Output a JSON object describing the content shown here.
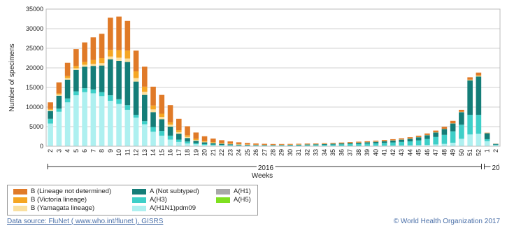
{
  "chart_data": {
    "type": "bar",
    "stacked": true,
    "ylabel": "Number of specimens",
    "xlabel": "Weeks",
    "ylim": [
      0,
      35000
    ],
    "yticks": [
      0,
      5000,
      10000,
      15000,
      20000,
      25000,
      30000,
      35000
    ],
    "year_labels": [
      "2016",
      "20"
    ],
    "categories": [
      "2",
      "3",
      "4",
      "5",
      "6",
      "7",
      "8",
      "9",
      "10",
      "11",
      "12",
      "13",
      "14",
      "15",
      "16",
      "17",
      "18",
      "19",
      "20",
      "21",
      "22",
      "23",
      "24",
      "25",
      "26",
      "27",
      "28",
      "29",
      "30",
      "31",
      "32",
      "33",
      "34",
      "35",
      "36",
      "37",
      "38",
      "39",
      "40",
      "41",
      "42",
      "43",
      "44",
      "45",
      "46",
      "47",
      "48",
      "49",
      "50",
      "51",
      "52",
      "1",
      "2"
    ],
    "series": [
      {
        "name": "A(H1N1)pdm09",
        "color": "#aef0f0",
        "values": [
          5800,
          8800,
          11200,
          13000,
          13800,
          13500,
          12800,
          11600,
          10800,
          9300,
          7300,
          5600,
          3700,
          2700,
          1700,
          1100,
          700,
          500,
          350,
          260,
          200,
          160,
          130,
          110,
          90,
          80,
          70,
          70,
          70,
          70,
          70,
          70,
          70,
          70,
          80,
          90,
          100,
          110,
          130,
          150,
          170,
          200,
          240,
          290,
          360,
          460,
          600,
          900,
          1900,
          3000,
          3200,
          1300,
          250
        ]
      },
      {
        "name": "A(H3)",
        "color": "#3ecfc8",
        "values": [
          1200,
          800,
          1000,
          1000,
          1000,
          1000,
          1000,
          1400,
          1200,
          1200,
          700,
          800,
          1200,
          1200,
          1000,
          600,
          500,
          300,
          200,
          180,
          150,
          130,
          110,
          100,
          100,
          110,
          130,
          150,
          170,
          200,
          230,
          260,
          300,
          350,
          400,
          450,
          500,
          560,
          620,
          700,
          800,
          900,
          1000,
          1200,
          1500,
          1900,
          2300,
          2900,
          3600,
          5000,
          4800,
          500,
          150
        ]
      },
      {
        "name": "A(H1)",
        "color": "#a8a8a8",
        "values": [
          0,
          0,
          0,
          0,
          0,
          0,
          0,
          0,
          0,
          0,
          0,
          0,
          0,
          0,
          0,
          0,
          0,
          0,
          0,
          0,
          0,
          0,
          0,
          0,
          0,
          0,
          0,
          0,
          0,
          0,
          0,
          0,
          0,
          0,
          0,
          0,
          0,
          0,
          0,
          0,
          0,
          0,
          0,
          0,
          0,
          0,
          0,
          0,
          0,
          0,
          0,
          0,
          0
        ]
      },
      {
        "name": "A(H5)",
        "color": "#7fe020",
        "values": [
          0,
          0,
          0,
          0,
          0,
          0,
          0,
          0,
          0,
          0,
          0,
          0,
          0,
          0,
          0,
          0,
          0,
          0,
          0,
          0,
          0,
          0,
          0,
          0,
          0,
          0,
          0,
          0,
          0,
          0,
          0,
          0,
          0,
          0,
          0,
          0,
          0,
          0,
          0,
          0,
          0,
          0,
          0,
          0,
          0,
          0,
          0,
          0,
          0,
          0,
          0,
          0,
          0
        ]
      },
      {
        "name": "A (Not subtyped)",
        "color": "#147d78",
        "values": [
          2000,
          3300,
          4800,
          5500,
          5500,
          6000,
          6800,
          9200,
          9800,
          11000,
          8500,
          6700,
          3800,
          3000,
          2300,
          1500,
          900,
          600,
          450,
          350,
          270,
          210,
          170,
          140,
          120,
          110,
          100,
          100,
          110,
          120,
          140,
          160,
          180,
          200,
          230,
          260,
          300,
          340,
          380,
          430,
          500,
          580,
          680,
          800,
          950,
          1150,
          1500,
          2000,
          3200,
          8800,
          9800,
          1500,
          200
        ]
      },
      {
        "name": "B (Yamagata lineage)",
        "color": "#fae0a0",
        "values": [
          300,
          300,
          400,
          400,
          500,
          500,
          600,
          700,
          800,
          900,
          900,
          800,
          700,
          600,
          500,
          400,
          300,
          200,
          150,
          120,
          100,
          80,
          60,
          50,
          40,
          30,
          30,
          30,
          30,
          30,
          30,
          30,
          30,
          30,
          30,
          30,
          30,
          30,
          30,
          30,
          30,
          30,
          30,
          30,
          30,
          30,
          30,
          30,
          50,
          100,
          150,
          30,
          10
        ]
      },
      {
        "name": "B (Victoria lineage)",
        "color": "#f5a623",
        "values": [
          200,
          300,
          500,
          600,
          700,
          1000,
          1300,
          1700,
          1900,
          2000,
          1700,
          1300,
          1000,
          800,
          600,
          500,
          400,
          300,
          200,
          150,
          120,
          100,
          80,
          60,
          50,
          40,
          40,
          40,
          40,
          40,
          40,
          40,
          40,
          40,
          40,
          40,
          40,
          40,
          40,
          40,
          40,
          40,
          40,
          40,
          40,
          40,
          40,
          40,
          50,
          100,
          150,
          30,
          10
        ]
      },
      {
        "name": "B (Lineage not determined)",
        "color": "#e07a28",
        "values": [
          1700,
          2800,
          3400,
          4300,
          5000,
          5800,
          6200,
          8200,
          8600,
          7600,
          5300,
          5100,
          4800,
          4800,
          4400,
          2900,
          2300,
          1600,
          1200,
          900,
          700,
          550,
          450,
          380,
          300,
          250,
          200,
          180,
          170,
          170,
          170,
          160,
          160,
          160,
          170,
          180,
          190,
          200,
          220,
          240,
          260,
          280,
          310,
          340,
          380,
          420,
          500,
          600,
          500,
          600,
          700,
          90,
          30
        ]
      }
    ]
  },
  "legend": {
    "items": [
      {
        "label": "B (Lineage not determined)",
        "color": "#e07a28"
      },
      {
        "label": "B (Victoria lineage)",
        "color": "#f5a623"
      },
      {
        "label": "B (Yamagata lineage)",
        "color": "#fae0a0"
      },
      {
        "label": "A (Not subtyped)",
        "color": "#147d78"
      },
      {
        "label": "A(H3)",
        "color": "#3ecfc8"
      },
      {
        "label": "A(H1N1)pdm09",
        "color": "#aef0f0"
      },
      {
        "label": "A(H1)",
        "color": "#a8a8a8"
      },
      {
        "label": "A(H5)",
        "color": "#7fe020"
      }
    ]
  },
  "footer": {
    "source": "Data source: FluNet ( www.who.int/flunet ), GISRS",
    "copyright": "© World Health Organization 2017"
  }
}
